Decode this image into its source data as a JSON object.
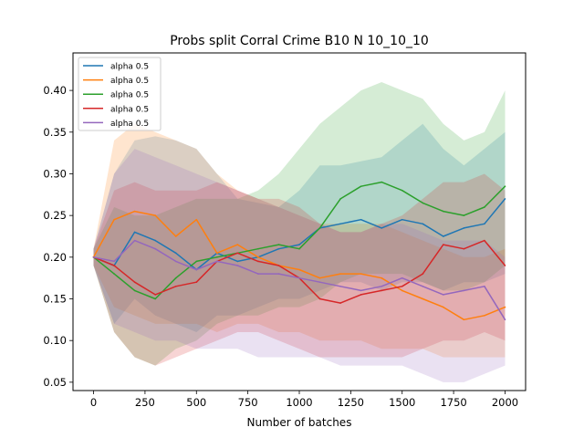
{
  "chart_data": {
    "type": "line",
    "title": "Probs split Corral Crime B10 N 10_10_10",
    "xlabel": "Number of batches",
    "ylabel": "",
    "xlim": [
      -100,
      2100
    ],
    "ylim": [
      0.04,
      0.445
    ],
    "xticks": [
      0,
      250,
      500,
      750,
      1000,
      1250,
      1500,
      1750,
      2000
    ],
    "yticks": [
      0.05,
      0.1,
      0.15,
      0.2,
      0.25,
      0.3,
      0.35,
      0.4
    ],
    "ytick_labels": [
      "0.05",
      "0.10",
      "0.15",
      "0.20",
      "0.25",
      "0.30",
      "0.35",
      "0.40"
    ],
    "grid": false,
    "legend_position": "top-left",
    "x": [
      0,
      100,
      200,
      300,
      400,
      500,
      600,
      700,
      800,
      900,
      1000,
      1100,
      1200,
      1300,
      1400,
      1500,
      1600,
      1700,
      1800,
      1900,
      2000
    ],
    "series": [
      {
        "name": "alpha 0.5",
        "color": "#1f77b4",
        "values": [
          0.2,
          0.19,
          0.23,
          0.22,
          0.205,
          0.185,
          0.205,
          0.195,
          0.2,
          0.21,
          0.215,
          0.235,
          0.24,
          0.245,
          0.235,
          0.245,
          0.24,
          0.225,
          0.235,
          0.24,
          0.27
        ],
        "upper": [
          0.21,
          0.3,
          0.34,
          0.345,
          0.34,
          0.33,
          0.3,
          0.27,
          0.265,
          0.26,
          0.28,
          0.31,
          0.31,
          0.315,
          0.32,
          0.34,
          0.36,
          0.33,
          0.31,
          0.33,
          0.35
        ],
        "lower": [
          0.19,
          0.12,
          0.15,
          0.13,
          0.12,
          0.11,
          0.13,
          0.13,
          0.14,
          0.15,
          0.15,
          0.16,
          0.17,
          0.17,
          0.16,
          0.17,
          0.17,
          0.16,
          0.17,
          0.17,
          0.18
        ]
      },
      {
        "name": "alpha 0.5",
        "color": "#ff7f0e",
        "values": [
          0.2,
          0.245,
          0.255,
          0.25,
          0.225,
          0.245,
          0.205,
          0.215,
          0.2,
          0.19,
          0.185,
          0.175,
          0.18,
          0.18,
          0.175,
          0.16,
          0.15,
          0.14,
          0.125,
          0.13,
          0.14
        ],
        "upper": [
          0.21,
          0.34,
          0.36,
          0.35,
          0.34,
          0.33,
          0.3,
          0.28,
          0.27,
          0.26,
          0.25,
          0.24,
          0.24,
          0.24,
          0.24,
          0.23,
          0.22,
          0.21,
          0.2,
          0.2,
          0.21
        ],
        "lower": [
          0.19,
          0.14,
          0.13,
          0.12,
          0.12,
          0.12,
          0.11,
          0.12,
          0.12,
          0.11,
          0.11,
          0.1,
          0.1,
          0.1,
          0.09,
          0.09,
          0.09,
          0.08,
          0.08,
          0.08,
          0.08
        ]
      },
      {
        "name": "alpha 0.5",
        "color": "#2ca02c",
        "values": [
          0.2,
          0.18,
          0.16,
          0.15,
          0.175,
          0.195,
          0.2,
          0.205,
          0.21,
          0.215,
          0.21,
          0.235,
          0.27,
          0.285,
          0.29,
          0.28,
          0.265,
          0.255,
          0.25,
          0.26,
          0.285
        ],
        "upper": [
          0.21,
          0.26,
          0.25,
          0.25,
          0.26,
          0.27,
          0.27,
          0.27,
          0.28,
          0.3,
          0.33,
          0.36,
          0.38,
          0.4,
          0.41,
          0.4,
          0.39,
          0.36,
          0.34,
          0.35,
          0.4
        ],
        "lower": [
          0.19,
          0.11,
          0.08,
          0.07,
          0.09,
          0.1,
          0.12,
          0.13,
          0.13,
          0.14,
          0.14,
          0.15,
          0.17,
          0.18,
          0.18,
          0.18,
          0.17,
          0.16,
          0.16,
          0.17,
          0.19
        ]
      },
      {
        "name": "alpha 0.5",
        "color": "#d62728",
        "values": [
          0.2,
          0.19,
          0.17,
          0.155,
          0.165,
          0.17,
          0.195,
          0.205,
          0.195,
          0.19,
          0.175,
          0.15,
          0.145,
          0.155,
          0.16,
          0.165,
          0.18,
          0.215,
          0.21,
          0.22,
          0.19
        ],
        "upper": [
          0.21,
          0.28,
          0.29,
          0.28,
          0.28,
          0.28,
          0.29,
          0.28,
          0.27,
          0.27,
          0.26,
          0.24,
          0.23,
          0.23,
          0.24,
          0.25,
          0.27,
          0.29,
          0.29,
          0.3,
          0.28
        ],
        "lower": [
          0.19,
          0.11,
          0.08,
          0.07,
          0.08,
          0.09,
          0.1,
          0.11,
          0.11,
          0.1,
          0.09,
          0.08,
          0.08,
          0.08,
          0.08,
          0.08,
          0.09,
          0.1,
          0.1,
          0.11,
          0.1
        ]
      },
      {
        "name": "alpha 0.5",
        "color": "#9467bd",
        "values": [
          0.2,
          0.195,
          0.22,
          0.21,
          0.195,
          0.185,
          0.195,
          0.19,
          0.18,
          0.18,
          0.175,
          0.17,
          0.165,
          0.16,
          0.165,
          0.175,
          0.165,
          0.155,
          0.16,
          0.165,
          0.125
        ],
        "upper": [
          0.21,
          0.3,
          0.33,
          0.32,
          0.31,
          0.3,
          0.29,
          0.28,
          0.27,
          0.26,
          0.25,
          0.24,
          0.23,
          0.23,
          0.24,
          0.24,
          0.23,
          0.22,
          0.22,
          0.22,
          0.2
        ],
        "lower": [
          0.19,
          0.12,
          0.11,
          0.1,
          0.1,
          0.09,
          0.09,
          0.09,
          0.08,
          0.08,
          0.08,
          0.08,
          0.07,
          0.07,
          0.07,
          0.07,
          0.06,
          0.05,
          0.05,
          0.06,
          0.07
        ]
      }
    ]
  }
}
